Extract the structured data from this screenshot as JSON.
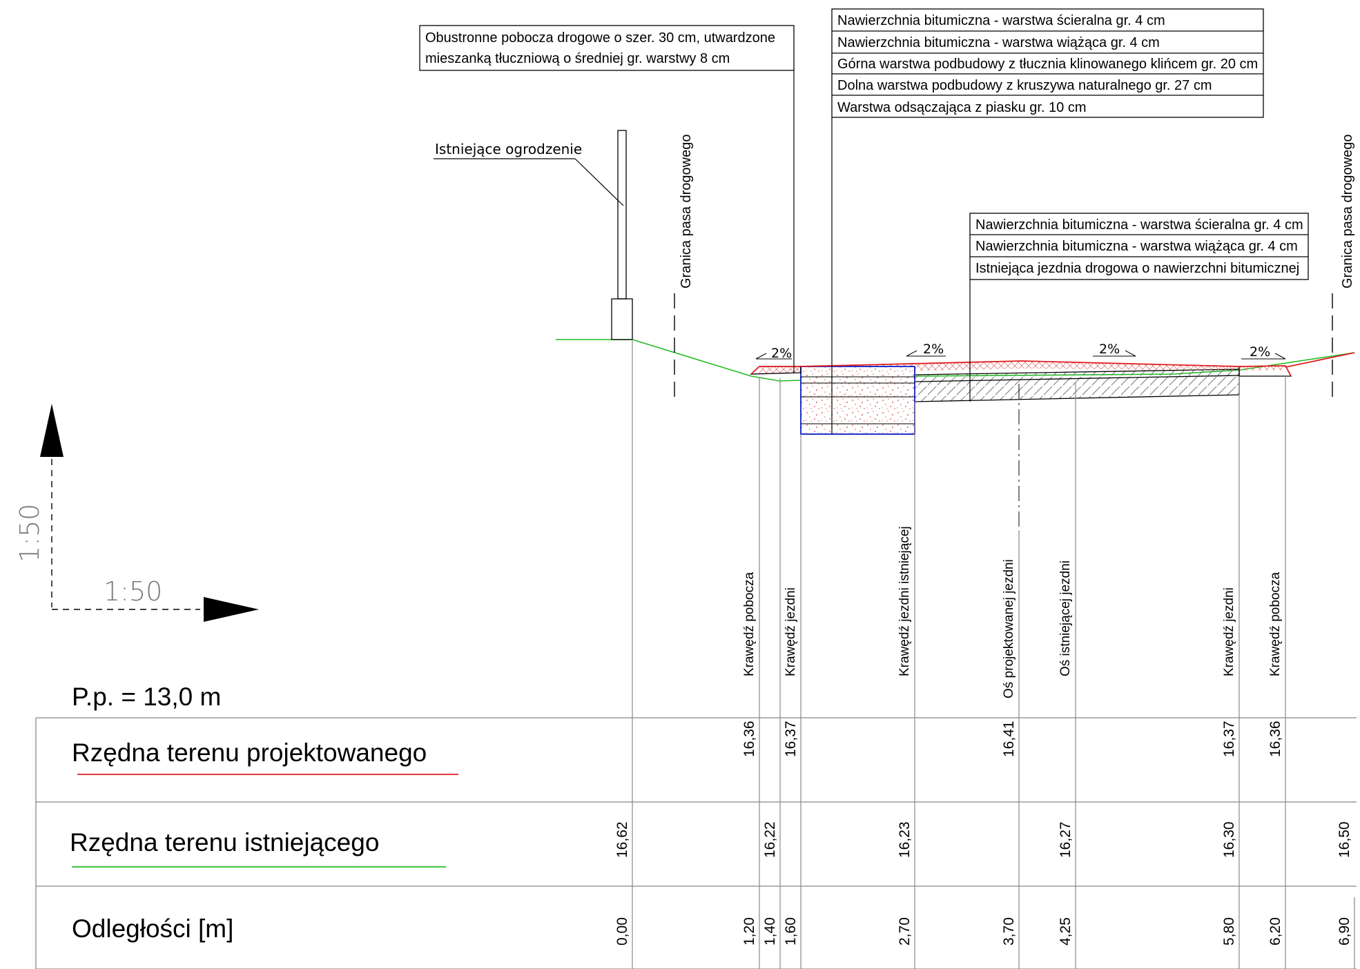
{
  "scale": {
    "vertical": "1:50",
    "horizontal": "1:50"
  },
  "plane_reference": "P.p. = 13,0 m",
  "labels": {
    "fence": "Istniejące ogrodzenie",
    "right_of_way": "Granica pasa drogowego",
    "shoulder_note": [
      "Obustronne pobocza drogowe o szer. 30 cm, utwardzone",
      "mieszanką tłuczniową o średniej gr. warstwy 8 cm"
    ],
    "new_pavement_layers": [
      "Nawierzchnia bitumiczna - warstwa ścieralna gr. 4 cm",
      "Nawierzchnia bitumiczna - warstwa wiążąca gr. 4 cm",
      "Górna warstwa podbudowy z tłucznia klinowanego klińcem gr. 20 cm",
      "Dolna warstwa podbudowy z kruszywa naturalnego gr. 27 cm",
      "Warstwa odsączająca z piasku gr. 10 cm"
    ],
    "existing_pavement_layers": [
      "Nawierzchnia bitumiczna - warstwa ścieralna gr. 4 cm",
      "Nawierzchnia bitumiczna - warstwa wiążąca gr. 4 cm",
      "Istniejąca jezdnia drogowa o nawierzchni bitumicznej"
    ],
    "slope": "2%"
  },
  "vertical_labels": [
    "Krawędź pobocza",
    "Krawędź jezdni",
    "Krawędź jezdni istniejącej",
    "Oś projektowanej jezdni",
    "Oś istniejącej jezdni",
    "Krawędź jezdni",
    "Krawędź pobocza"
  ],
  "table": {
    "rows": [
      {
        "label": "Rzędna terenu projektowanego",
        "color": "#e0191b"
      },
      {
        "label": "Rzędna terenu istniejącego",
        "color": "#22bb22"
      },
      {
        "label": "Odległości [m]",
        "color": null
      }
    ],
    "designed": [
      "16,36",
      "16,37",
      "16,41",
      "16,37",
      "16,36"
    ],
    "existing": [
      "16,62",
      "16,22",
      "16,23",
      "16,27",
      "16,30",
      "16,50"
    ],
    "distances": [
      "0,00",
      "1,20",
      "1,40",
      "1,60",
      "2,70",
      "3,70",
      "4,25",
      "5,80",
      "6,20",
      "6,90"
    ]
  }
}
